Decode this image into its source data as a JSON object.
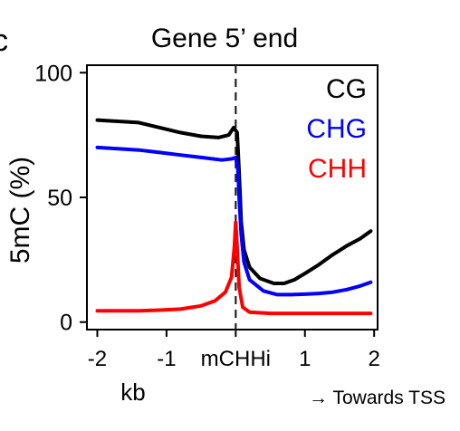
{
  "panel_letter": "c",
  "chart_data": {
    "type": "line",
    "title": "Gene 5’ end",
    "xlabel": "kb",
    "ylabel": "5mC (%)",
    "direction_note": "→ Towards TSS",
    "xlim": [
      -2.15,
      2.05
    ],
    "ylim": [
      -3,
      103
    ],
    "x_ticks": [
      {
        "value": -2,
        "label": "-2"
      },
      {
        "value": -1,
        "label": "-1"
      },
      {
        "value": 0,
        "label": "mCHHi"
      },
      {
        "value": 1,
        "label": "1"
      },
      {
        "value": 2,
        "label": "2"
      }
    ],
    "y_ticks": [
      {
        "value": 0,
        "label": "0"
      },
      {
        "value": 50,
        "label": "50"
      },
      {
        "value": 100,
        "label": "100"
      }
    ],
    "reference_line": {
      "x": 0,
      "style": "dashed"
    },
    "legend_position": "top-right",
    "series": [
      {
        "name": "CG",
        "color": "#000000",
        "points": [
          [
            -2.0,
            81
          ],
          [
            -1.7,
            80.5
          ],
          [
            -1.4,
            80
          ],
          [
            -1.1,
            78
          ],
          [
            -0.8,
            76
          ],
          [
            -0.5,
            74.5
          ],
          [
            -0.25,
            74
          ],
          [
            -0.1,
            75
          ],
          [
            -0.03,
            78
          ],
          [
            0.02,
            76
          ],
          [
            0.05,
            60
          ],
          [
            0.08,
            40
          ],
          [
            0.12,
            29
          ],
          [
            0.2,
            22
          ],
          [
            0.35,
            17.5
          ],
          [
            0.55,
            15.5
          ],
          [
            0.7,
            15.5
          ],
          [
            0.85,
            17
          ],
          [
            1.0,
            19.5
          ],
          [
            1.2,
            23
          ],
          [
            1.4,
            27
          ],
          [
            1.6,
            30.5
          ],
          [
            1.8,
            33.5
          ],
          [
            1.95,
            36.5
          ]
        ]
      },
      {
        "name": "CHG",
        "color": "#0000ff",
        "points": [
          [
            -2.0,
            70
          ],
          [
            -1.7,
            69.5
          ],
          [
            -1.4,
            69
          ],
          [
            -1.1,
            68
          ],
          [
            -0.8,
            67
          ],
          [
            -0.5,
            66
          ],
          [
            -0.2,
            65
          ],
          [
            -0.05,
            65.5
          ],
          [
            0.0,
            66
          ],
          [
            0.03,
            62
          ],
          [
            0.05,
            50
          ],
          [
            0.08,
            35
          ],
          [
            0.12,
            24
          ],
          [
            0.2,
            17
          ],
          [
            0.4,
            12.5
          ],
          [
            0.6,
            11
          ],
          [
            0.8,
            11
          ],
          [
            1.0,
            11.2
          ],
          [
            1.2,
            11.5
          ],
          [
            1.4,
            12
          ],
          [
            1.6,
            13
          ],
          [
            1.8,
            14.5
          ],
          [
            1.95,
            16
          ]
        ]
      },
      {
        "name": "CHH",
        "color": "#ff0000",
        "points": [
          [
            -2.0,
            4.5
          ],
          [
            -1.7,
            4.5
          ],
          [
            -1.4,
            4.5
          ],
          [
            -1.1,
            4.8
          ],
          [
            -0.8,
            5.2
          ],
          [
            -0.5,
            6.5
          ],
          [
            -0.3,
            8.5
          ],
          [
            -0.15,
            12
          ],
          [
            -0.06,
            18
          ],
          [
            -0.02,
            30
          ],
          [
            0.0,
            40
          ],
          [
            0.02,
            30
          ],
          [
            0.05,
            14
          ],
          [
            0.1,
            6
          ],
          [
            0.2,
            4
          ],
          [
            0.5,
            3.5
          ],
          [
            1.0,
            3.5
          ],
          [
            1.5,
            3.5
          ],
          [
            1.95,
            3.5
          ]
        ]
      }
    ]
  }
}
